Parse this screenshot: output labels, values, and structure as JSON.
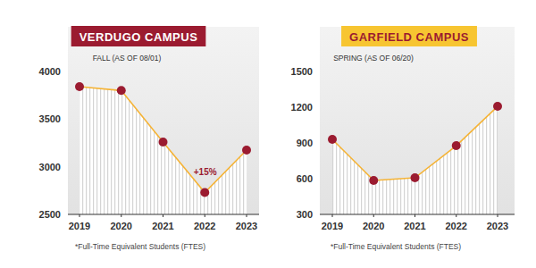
{
  "chart_data": [
    {
      "type": "line",
      "title": "VERDUGO CAMPUS",
      "subtitle": "FALL (AS OF 08/01)",
      "categories": [
        "2019",
        "2020",
        "2021",
        "2022",
        "2023"
      ],
      "values": [
        3840,
        3800,
        3260,
        2730,
        3175
      ],
      "color": "#f5b335",
      "marker": "circle",
      "ylim": [
        2500,
        4000
      ],
      "yticks": [
        2500,
        3000,
        3500,
        4000
      ],
      "grid": false,
      "annotation": "+15%",
      "footnote": "*Full-Time Equivalent Students (FTES)"
    },
    {
      "type": "line",
      "title": "GARFIELD CAMPUS",
      "subtitle": "SPRING (AS OF 06/20)",
      "categories": [
        "2019",
        "2020",
        "2021",
        "2022",
        "2023"
      ],
      "values": [
        930,
        585,
        607,
        877,
        1207
      ],
      "color": "#f5b335",
      "marker": "circle",
      "ylim": [
        300,
        1500
      ],
      "yticks": [
        300,
        600,
        900,
        1200,
        1500
      ],
      "grid": false,
      "footnote": "*Full-Time Equivalent Students (FTES)"
    }
  ]
}
